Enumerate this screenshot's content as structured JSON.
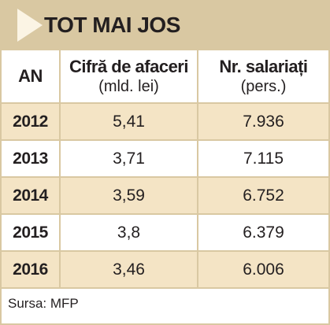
{
  "title": "TOT MAI JOS",
  "colors": {
    "accent": "#d9c8a2",
    "row_shade": "#f4e4c5",
    "arrow": "#fbf4e4",
    "text": "#231f20"
  },
  "icons": {
    "title_marker": "triangle-arrow-icon"
  },
  "table": {
    "headers": {
      "year": "AN",
      "revenue": "Cifră de afaceri",
      "revenue_unit": "(mld. lei)",
      "employees": "Nr. salariați",
      "employees_unit": "(pers.)"
    },
    "rows": [
      {
        "year": "2012",
        "revenue": "5,41",
        "employees": "7.936"
      },
      {
        "year": "2013",
        "revenue": "3,71",
        "employees": "7.115"
      },
      {
        "year": "2014",
        "revenue": "3,59",
        "employees": "6.752"
      },
      {
        "year": "2015",
        "revenue": "3,8",
        "employees": "6.379"
      },
      {
        "year": "2016",
        "revenue": "3,46",
        "employees": "6.006"
      }
    ]
  },
  "source": "Sursa: MFP"
}
